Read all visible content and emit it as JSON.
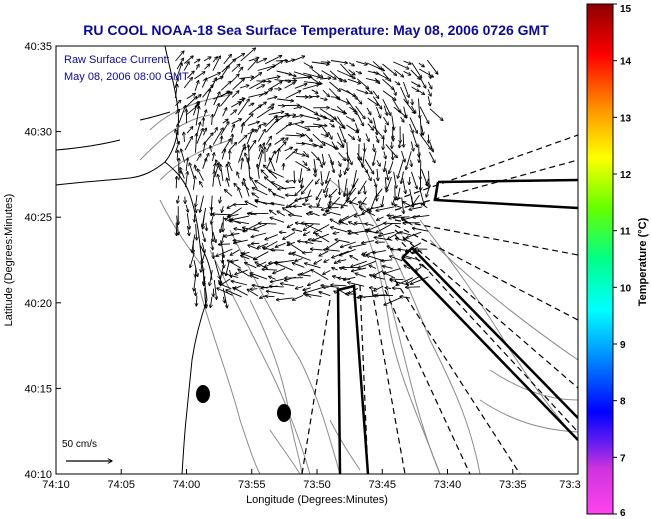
{
  "title": "RU COOL  NOAA-18  Sea Surface Temperature:  May 08, 2006 0726 GMT",
  "overlay": {
    "line1": "Raw Surface Current:",
    "line2": "May 08, 2006 08:00 GMT"
  },
  "axes": {
    "xlabel": "Longitude (Degrees:Minutes)",
    "ylabel": "Latitude (Degrees:Minutes)",
    "xticks": [
      "74:10",
      "74:05",
      "74:00",
      "73:55",
      "73:50",
      "73:45",
      "73:40",
      "73:35",
      "73:3"
    ],
    "yticks": [
      "40:35",
      "40:30",
      "40:25",
      "40:20",
      "40:15",
      "40:10"
    ]
  },
  "scale_bar": {
    "label": "50 cm/s"
  },
  "colorbar": {
    "label": "Temperature (°C)",
    "ticks": [
      "15",
      "14",
      "13",
      "12",
      "11",
      "10",
      "9",
      "8",
      "7",
      "6"
    ],
    "colors": {
      "top": "#8b0000",
      "red": "#ff0000",
      "orange": "#ff8c00",
      "yellow": "#ffff00",
      "green": "#00ff00",
      "cyan": "#00ffff",
      "blue": "#0000ff",
      "purple": "#8b00ff",
      "bottom": "#ff44ee"
    }
  },
  "colors": {
    "title": "#0a0a9a",
    "land": "#000000",
    "contours": "#888888",
    "vectors": "#000000"
  }
}
